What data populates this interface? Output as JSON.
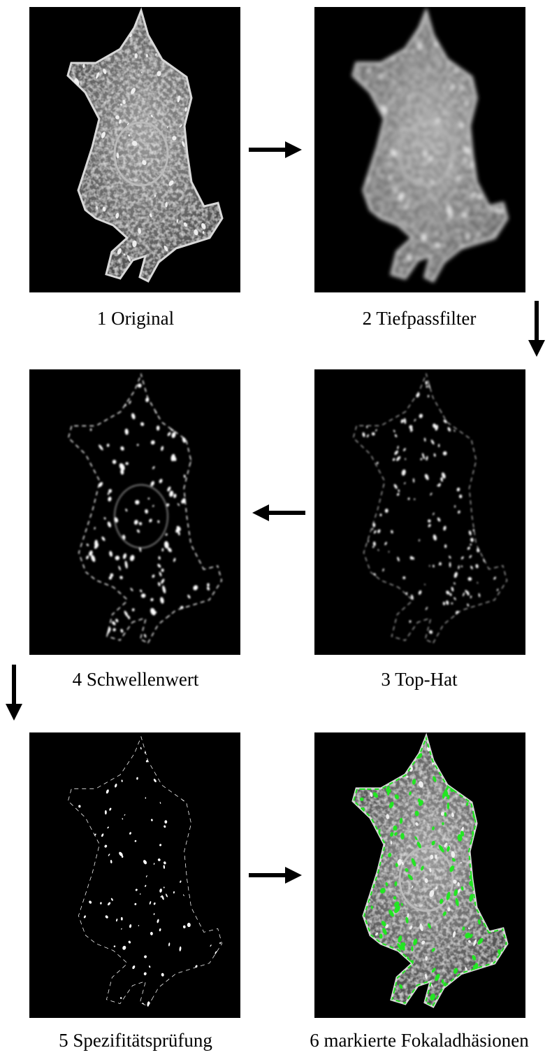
{
  "panels": [
    {
      "label": "1 Original"
    },
    {
      "label": "2 Tiefpassfilter"
    },
    {
      "label": "3 Top-Hat"
    },
    {
      "label": "4 Schwellenwert"
    },
    {
      "label": "5 Spezifitätsprüfung"
    },
    {
      "label": "6 markierte Fokaladhäsionen"
    }
  ]
}
